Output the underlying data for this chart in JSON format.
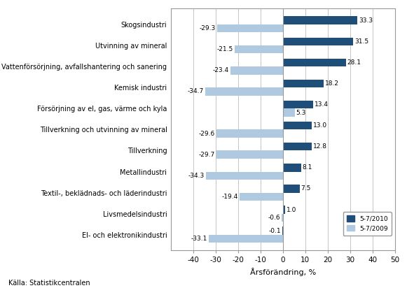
{
  "categories": [
    "El- och elektronikindustri",
    "Livsmedelsindustri",
    "Textil-, beklädnads- och läderindustri",
    "Metallindustri",
    "Tillverkning",
    "Tillverkning och utvinning av mineral",
    "Försörjning av el, gas, värme och kyla",
    "Kemisk industri",
    "Vattenförsörjning, avfallshantering och sanering",
    "Utvinning av mineral",
    "Skogsindustri"
  ],
  "values_2010": [
    -0.1,
    1.0,
    7.5,
    8.1,
    12.8,
    13.0,
    13.4,
    18.2,
    28.1,
    31.5,
    33.3
  ],
  "values_2009": [
    -33.1,
    -0.6,
    -19.4,
    -34.3,
    -29.7,
    -29.6,
    5.3,
    -34.7,
    -23.4,
    -21.5,
    -29.3
  ],
  "color_2010": "#1F4E79",
  "color_2009": "#AFC9E1",
  "xlim": [
    -50,
    50
  ],
  "xticks": [
    -40,
    -30,
    -20,
    -10,
    0,
    10,
    20,
    30,
    40,
    50
  ],
  "xlabel": "Årsförändring, %",
  "legend_2010": "5-7/2010",
  "legend_2009": "5-7/2009",
  "source": "Källa: Statistikcentralen",
  "bar_height": 0.38,
  "background_color": "#FFFFFF",
  "grid_color": "#BBBBBB",
  "spine_color": "#999999"
}
